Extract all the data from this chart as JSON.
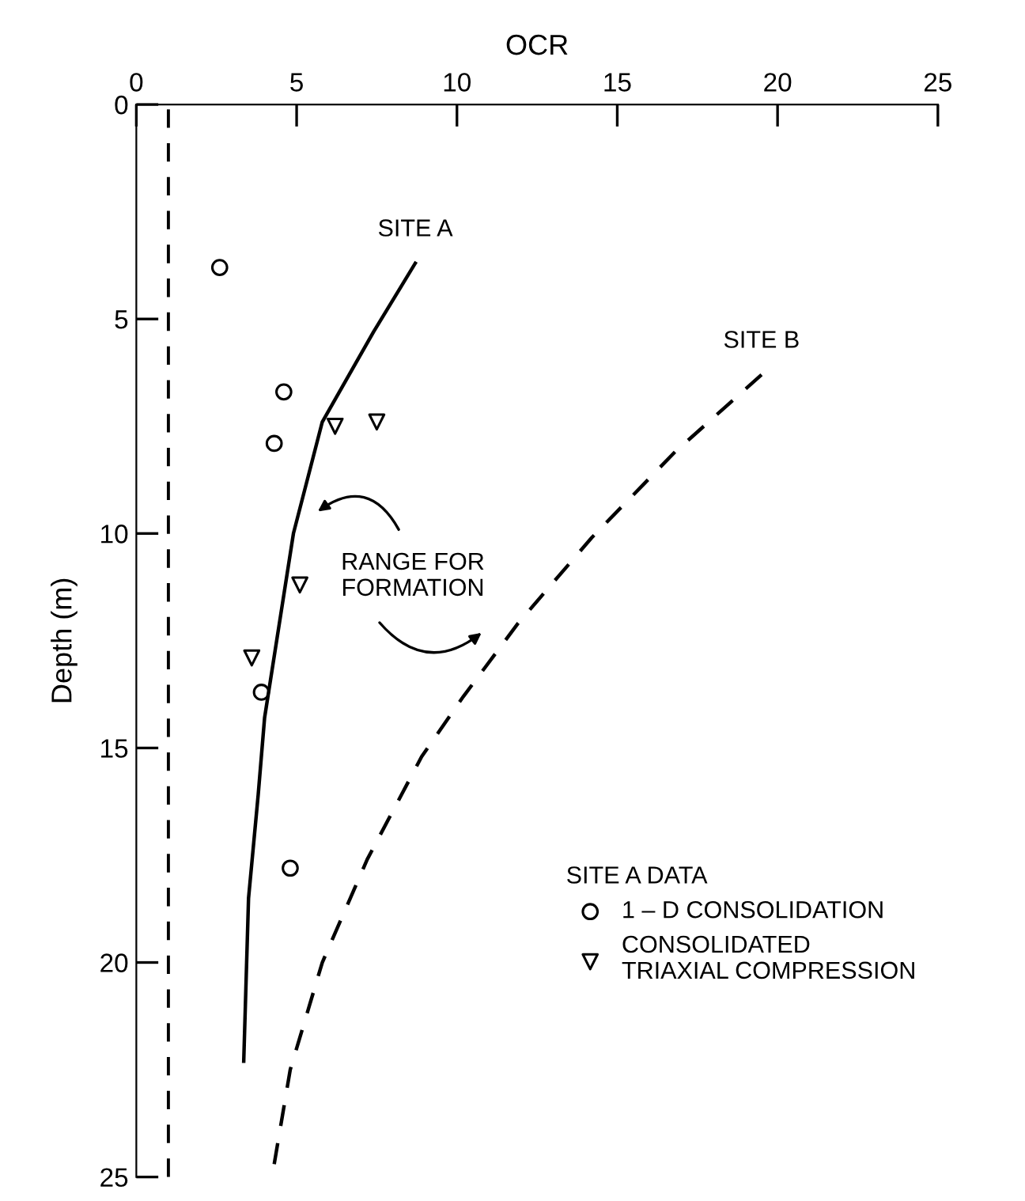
{
  "chart_data": {
    "type": "line",
    "xlabel": "OCR",
    "ylabel": "Depth (m)",
    "xlim": [
      0,
      25
    ],
    "xticks": [
      0,
      5,
      10,
      15,
      20,
      25
    ],
    "ylim": [
      25,
      0
    ],
    "yticks": [
      0,
      5,
      10,
      15,
      20,
      25
    ],
    "grid": false,
    "legend": "bottom right",
    "legend_title": "SITE A DATA",
    "series": [
      {
        "name": "SITE A",
        "line_style": "solid",
        "color": "#000000",
        "x": [
          8.7,
          7.4,
          5.8,
          4.9,
          4.0,
          3.8,
          3.5,
          3.35
        ],
        "values": [
          3.7,
          5.3,
          7.4,
          10.0,
          14.3,
          16.1,
          18.5,
          22.3
        ]
      },
      {
        "name": "SITE B",
        "line_style": "dashed",
        "color": "#000000",
        "x": [
          19.5,
          16.8,
          14.2,
          11.9,
          10.2,
          8.9,
          7.2,
          5.8,
          4.8,
          4.3
        ],
        "values": [
          6.3,
          8.1,
          10.1,
          12.1,
          13.8,
          15.2,
          17.6,
          20.0,
          22.5,
          24.7
        ]
      },
      {
        "name": "1 – D CONSOLIDATION",
        "type": "scatter",
        "marker": "circle",
        "color": "#000000",
        "x": [
          2.6,
          4.6,
          4.3,
          3.9,
          4.8
        ],
        "values": [
          3.8,
          6.7,
          7.9,
          13.7,
          17.8
        ]
      },
      {
        "name": "CONSOLIDATED\nTRIAXIAL COMPRESSION",
        "type": "scatter",
        "marker": "triangle",
        "color": "#000000",
        "x": [
          6.2,
          7.5,
          5.1,
          3.6
        ],
        "values": [
          7.5,
          7.4,
          11.2,
          12.9
        ]
      }
    ],
    "ref_lines": [
      {
        "axis": "x",
        "value": 1,
        "line_style": "dashed",
        "color": "#000000"
      }
    ],
    "annotations": [
      "RANGE FOR\nFORMATION"
    ]
  }
}
